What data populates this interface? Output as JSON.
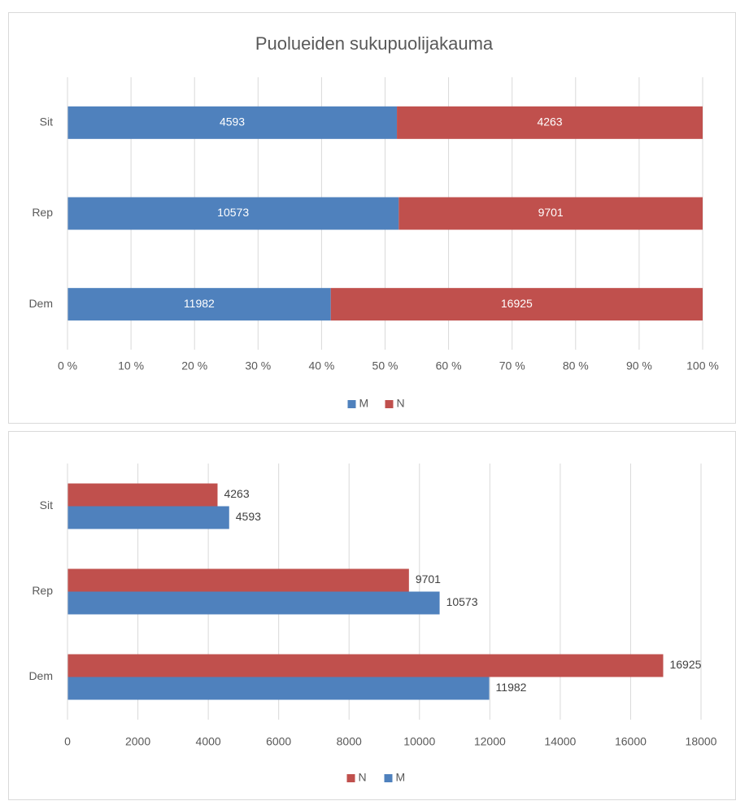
{
  "chart_data": [
    {
      "type": "bar",
      "orientation": "horizontal",
      "stacked": "percent",
      "title": "Puolueiden sukupuolijakauma",
      "categories": [
        "Dem",
        "Rep",
        "Sit"
      ],
      "series": [
        {
          "name": "M",
          "color": "#4f81bd",
          "values": [
            11982,
            10573,
            4593
          ]
        },
        {
          "name": "N",
          "color": "#c0504d",
          "values": [
            16925,
            9701,
            4263
          ]
        }
      ],
      "xlim": [
        0,
        100
      ],
      "xticks": [
        {
          "value": 0,
          "label": "0 %"
        },
        {
          "value": 10,
          "label": "10 %"
        },
        {
          "value": 20,
          "label": "20 %"
        },
        {
          "value": 30,
          "label": "30 %"
        },
        {
          "value": 40,
          "label": "40 %"
        },
        {
          "value": 50,
          "label": "50 %"
        },
        {
          "value": 60,
          "label": "60 %"
        },
        {
          "value": 70,
          "label": "70 %"
        },
        {
          "value": 80,
          "label": "80 %"
        },
        {
          "value": 90,
          "label": "90 %"
        },
        {
          "value": 100,
          "label": "100 %"
        }
      ],
      "grid": true,
      "legend": "bottom"
    },
    {
      "type": "bar",
      "orientation": "horizontal",
      "categories": [
        "Dem",
        "Rep",
        "Sit"
      ],
      "series": [
        {
          "name": "N",
          "color": "#c0504d",
          "values": [
            16925,
            9701,
            4263
          ]
        },
        {
          "name": "M",
          "color": "#4f81bd",
          "values": [
            11982,
            10573,
            4593
          ]
        }
      ],
      "xlim": [
        0,
        18000
      ],
      "xticks": [
        0,
        2000,
        4000,
        6000,
        8000,
        10000,
        12000,
        14000,
        16000,
        18000
      ],
      "grid": true,
      "legend": "bottom"
    }
  ]
}
